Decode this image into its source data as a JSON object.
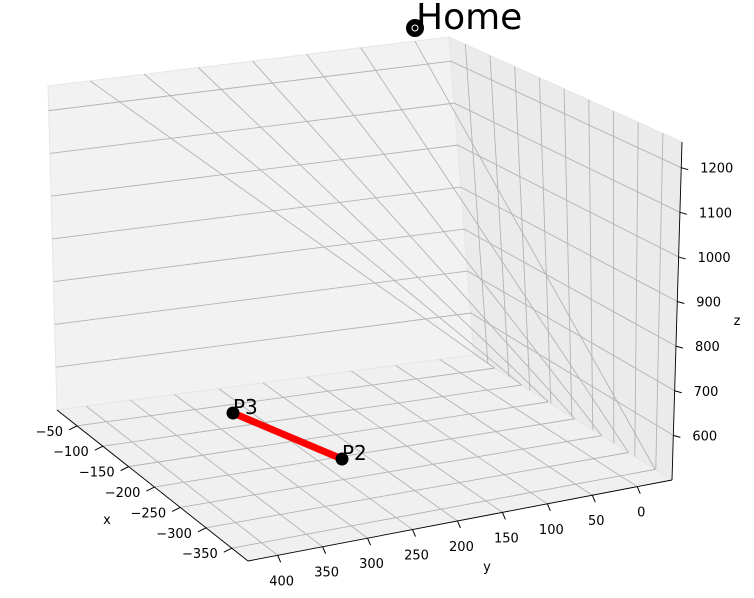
{
  "chart_data": {
    "type": "scatter",
    "title": "",
    "xlabel": "x",
    "ylabel": "y",
    "zlabel": "z",
    "grid": true,
    "x_ticks": [
      "−50",
      "−100",
      "−150",
      "−200",
      "−250",
      "−300",
      "−350"
    ],
    "y_ticks": [
      "400",
      "350",
      "300",
      "250",
      "200",
      "150",
      "100",
      "50",
      "0"
    ],
    "z_ticks": [
      "600",
      "700",
      "800",
      "900",
      "1000",
      "1100",
      "1200"
    ],
    "points": [
      {
        "label": "Home",
        "x": 0,
        "y": 0,
        "z": 1200,
        "color": "#000000",
        "icon": "home-marker-icon"
      },
      {
        "label": "P3",
        "x": -110,
        "y": 380,
        "z": 555,
        "color": "#000000"
      },
      {
        "label": "P2",
        "x": -300,
        "y": 300,
        "z": 555,
        "color": "#000000"
      }
    ],
    "segments": [
      {
        "from": "P3",
        "to": "P2",
        "color": "#ff0000"
      }
    ]
  }
}
